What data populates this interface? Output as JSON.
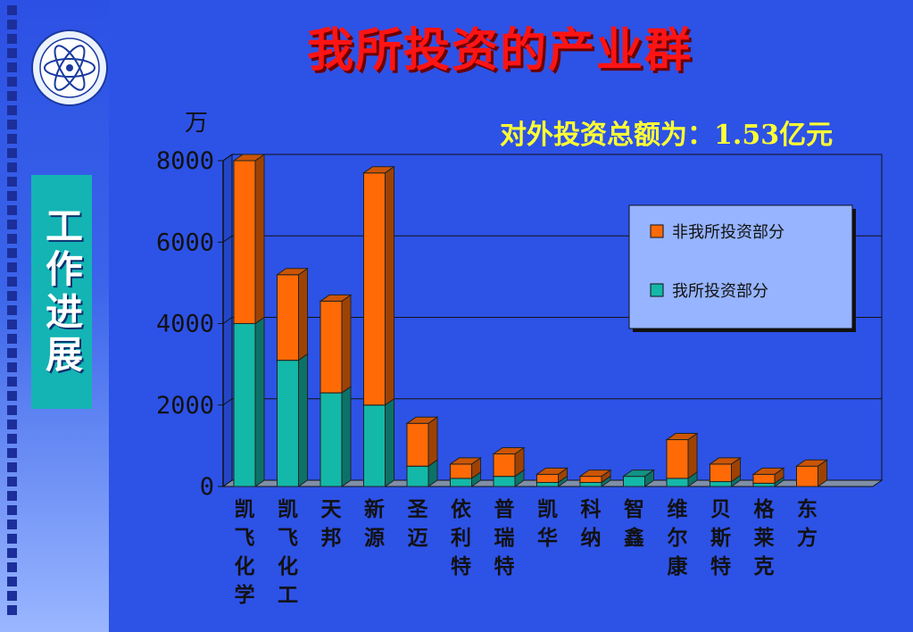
{
  "page": {
    "title": "我所投资的产业群",
    "side_title": "工作进展",
    "total_label": "对外投资总额为：1.53亿元"
  },
  "colors": {
    "own": "#14b8a8",
    "non_own": "#ff6a06",
    "background": "#2d52e6",
    "plot_bg": "#2d52e6",
    "legend_bg": "#96b4ff"
  },
  "chart_data": {
    "type": "bar",
    "stacked": true,
    "unit": "万",
    "categories": [
      "凯飞化学",
      "凯飞化工",
      "天邦",
      "新源",
      "圣迈",
      "依利特",
      "普瑞特",
      "凯华",
      "科纳",
      "智鑫",
      "维尔康",
      "贝斯特",
      "格莱克",
      "东方"
    ],
    "series": [
      {
        "name": "我所投资部分",
        "values": [
          4000,
          3100,
          2300,
          2000,
          500,
          200,
          250,
          100,
          100,
          250,
          200,
          120,
          80,
          0
        ]
      },
      {
        "name": "非我所投资部分",
        "values": [
          4000,
          2100,
          2250,
          5700,
          1050,
          350,
          550,
          200,
          150,
          0,
          950,
          430,
          220,
          500
        ]
      }
    ],
    "yticks": [
      0,
      2000,
      4000,
      6000,
      8000
    ],
    "ylim": [
      0,
      8000
    ],
    "grid": true,
    "legend_position": "top-right"
  }
}
